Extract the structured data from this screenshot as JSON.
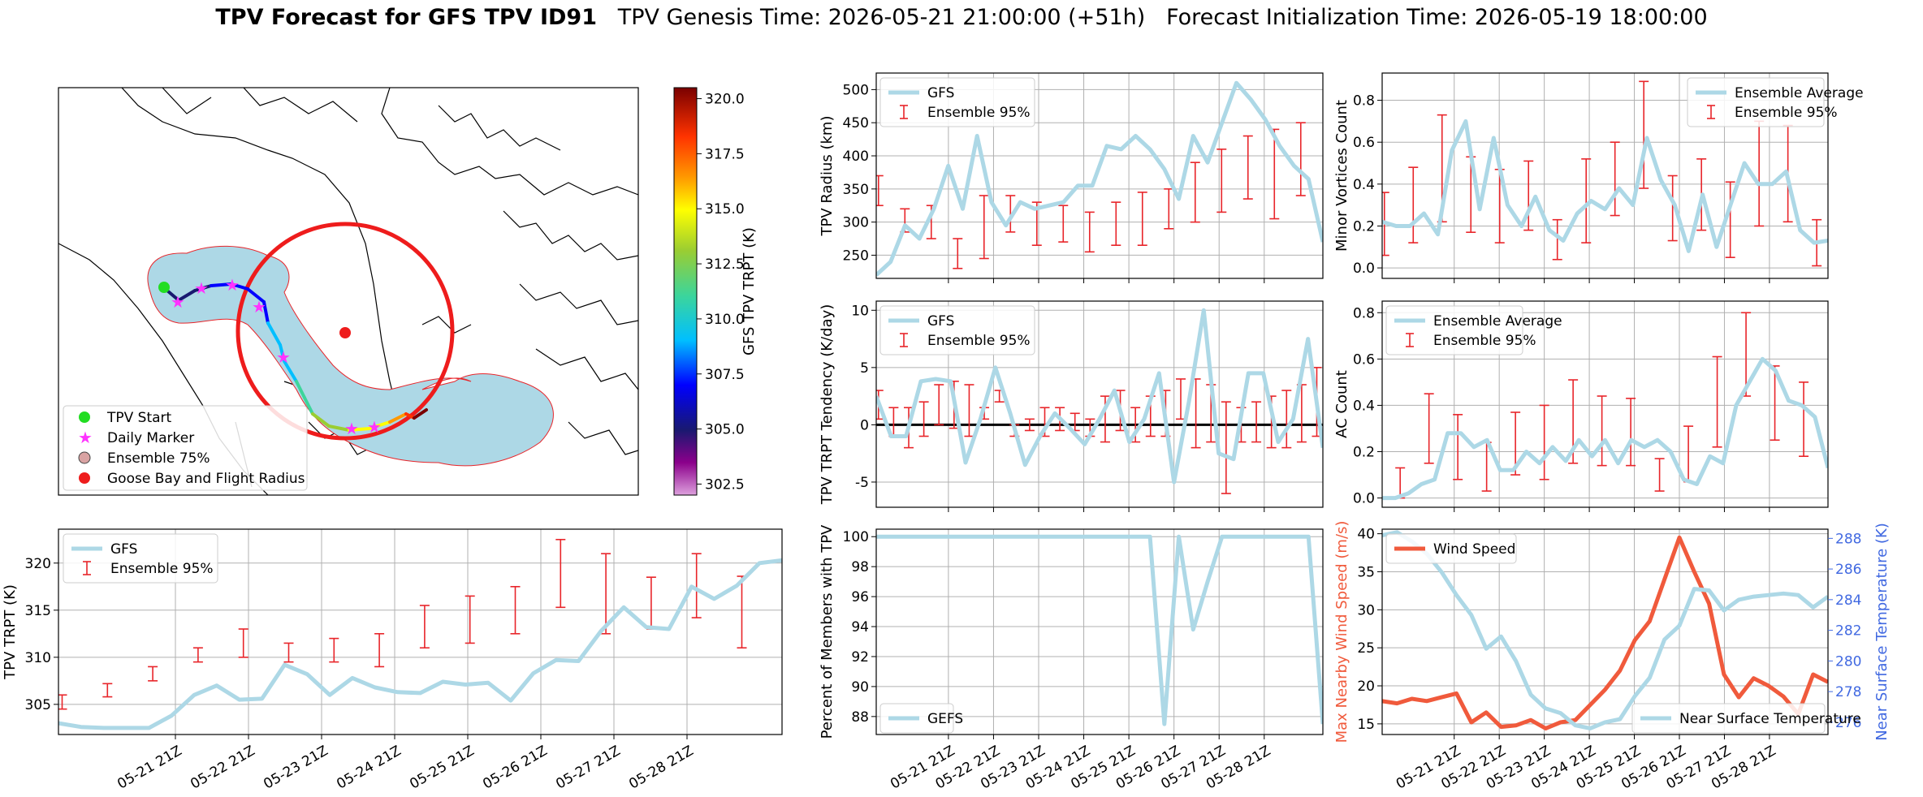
{
  "header": {
    "title_bold": "TPV Forecast for GFS TPV ID91",
    "genesis": "TPV Genesis Time: 2026-05-21 21:00:00 (+51h)",
    "init": "Forecast Initialization Time: 2026-05-19 18:00:00"
  },
  "colors": {
    "gfs_line": "#add8e6",
    "ensemble_bar": "#e8252a",
    "wind_line": "#f05a3c",
    "temp_axis": "#4169e1",
    "tendency_zero": "#000000"
  },
  "chart_data": [
    {
      "id": "map",
      "type": "map",
      "legend": [
        "TPV Start",
        "Daily Marker",
        "Ensemble 75%",
        "Goose Bay and Flight Radius"
      ],
      "colorbar": {
        "label": "GFS TPV TRPT (K)",
        "range": [
          302.0,
          320.5
        ],
        "ticks": [
          "302.5",
          "305.0",
          "307.5",
          "310.0",
          "312.5",
          "315.0",
          "317.5",
          "320.0"
        ]
      }
    },
    {
      "id": "radius",
      "type": "line",
      "ylabel": "TPV Radius (km)",
      "ylim": [
        215,
        525
      ],
      "yticks": [
        250,
        300,
        350,
        400,
        450,
        500
      ],
      "legend": [
        "GFS",
        "Ensemble 95%"
      ],
      "series": [
        {
          "name": "GFS",
          "values": [
            220,
            240,
            295,
            275,
            320,
            385,
            320,
            430,
            330,
            295,
            330,
            320,
            325,
            330,
            355,
            355,
            415,
            410,
            430,
            410,
            380,
            335,
            430,
            390,
            450,
            510,
            485,
            455,
            415,
            385,
            365,
            270
          ]
        }
      ],
      "ensemble": [
        [
          325,
          370
        ],
        [
          285,
          320
        ],
        [
          275,
          325
        ],
        [
          230,
          275
        ],
        [
          245,
          340
        ],
        [
          285,
          340
        ],
        [
          265,
          330
        ],
        [
          270,
          325
        ],
        [
          255,
          315
        ],
        [
          265,
          330
        ],
        [
          265,
          345
        ],
        [
          290,
          350
        ],
        [
          300,
          390
        ],
        [
          315,
          410
        ],
        [
          335,
          430
        ],
        [
          305,
          440
        ],
        [
          340,
          450
        ]
      ]
    },
    {
      "id": "tendency",
      "type": "line",
      "ylabel": "TPV TRPT Tendency (K/day)",
      "ylim": [
        -7.2,
        10.8
      ],
      "yticks": [
        -5,
        0,
        5,
        10
      ],
      "legend": [
        "GFS",
        "Ensemble 95%"
      ],
      "series": [
        {
          "name": "GFS",
          "values": [
            2.5,
            -1,
            -1,
            3.8,
            4,
            3.8,
            -3.3,
            0.5,
            5,
            1,
            -3.5,
            -1,
            1,
            -0.3,
            -1.7,
            0.5,
            3,
            -1.5,
            0.5,
            4.5,
            -5,
            2,
            10,
            -2.5,
            -3,
            4.5,
            4.5,
            -1.5,
            0.5,
            7.5,
            -2
          ]
        }
      ],
      "ensemble": [
        [
          0.5,
          3
        ],
        [
          -1,
          1.5
        ],
        [
          -2,
          1.5
        ],
        [
          -1,
          2
        ],
        [
          0,
          3.5
        ],
        [
          -0.3,
          3.8
        ],
        [
          -1,
          3.5
        ],
        [
          0.5,
          1.5
        ],
        [
          2,
          3
        ],
        [
          -1,
          0
        ],
        [
          -0.5,
          0.5
        ],
        [
          -1,
          1.5
        ],
        [
          -0.5,
          1.5
        ],
        [
          -0.5,
          1
        ],
        [
          -1,
          0.5
        ],
        [
          -1.5,
          2.5
        ],
        [
          -0.5,
          3
        ],
        [
          -1.5,
          1.5
        ],
        [
          -1,
          2.5
        ],
        [
          -1,
          3
        ],
        [
          0.5,
          4
        ],
        [
          -2,
          4
        ],
        [
          -1.5,
          3.5
        ],
        [
          -6,
          2
        ],
        [
          -1.5,
          1.5
        ],
        [
          -1.5,
          2
        ],
        [
          -2,
          2.5
        ],
        [
          -2,
          3
        ],
        [
          -1.5,
          3.5
        ],
        [
          -1,
          5
        ]
      ]
    },
    {
      "id": "members",
      "type": "line",
      "ylabel": "Percent of Members with TPV",
      "ylim": [
        86.8,
        100.5
      ],
      "yticks": [
        88,
        90,
        92,
        94,
        96,
        98,
        100
      ],
      "legend": [
        "GEFS"
      ],
      "xticks": [
        "05-21 21Z",
        "05-22 21Z",
        "05-23 21Z",
        "05-24 21Z",
        "05-25 21Z",
        "05-26 21Z",
        "05-27 21Z",
        "05-28 21Z"
      ],
      "series": [
        {
          "name": "GEFS",
          "values": [
            100,
            100,
            100,
            100,
            100,
            100,
            100,
            100,
            100,
            100,
            100,
            100,
            100,
            100,
            100,
            100,
            100,
            100,
            100,
            100,
            87.5,
            100,
            93.8,
            97,
            100,
            100,
            100,
            100,
            100,
            100,
            100,
            87.5
          ]
        }
      ]
    },
    {
      "id": "minor",
      "type": "line",
      "ylabel": "Minor Vortices Count",
      "ylim": [
        -0.05,
        0.93
      ],
      "yticks": [
        "0.0",
        "0.2",
        "0.4",
        "0.6",
        "0.8"
      ],
      "legend": [
        "Ensemble Average",
        "Ensemble 95%"
      ],
      "series": [
        {
          "name": "Ensemble Average",
          "values": [
            0.22,
            0.2,
            0.2,
            0.26,
            0.16,
            0.56,
            0.7,
            0.28,
            0.62,
            0.3,
            0.2,
            0.34,
            0.18,
            0.13,
            0.26,
            0.32,
            0.28,
            0.38,
            0.3,
            0.62,
            0.42,
            0.3,
            0.08,
            0.35,
            0.1,
            0.3,
            0.5,
            0.4,
            0.4,
            0.46,
            0.18,
            0.12,
            0.13
          ]
        }
      ],
      "ensemble": [
        [
          0.06,
          0.36
        ],
        [
          0.12,
          0.48
        ],
        [
          0.22,
          0.73
        ],
        [
          0.17,
          0.53
        ],
        [
          0.12,
          0.47
        ],
        [
          0.18,
          0.51
        ],
        [
          0.04,
          0.23
        ],
        [
          0.12,
          0.52
        ],
        [
          0.25,
          0.6
        ],
        [
          0.38,
          0.89
        ],
        [
          0.13,
          0.44
        ],
        [
          0.18,
          0.52
        ],
        [
          0.05,
          0.41
        ],
        [
          0.2,
          0.7
        ],
        [
          0.22,
          0.68
        ],
        [
          0.01,
          0.23
        ]
      ]
    },
    {
      "id": "ac",
      "type": "line",
      "ylabel": "AC Count",
      "ylim": [
        -0.04,
        0.85
      ],
      "yticks": [
        "0.0",
        "0.2",
        "0.4",
        "0.6",
        "0.8"
      ],
      "legend": [
        "Ensemble Average",
        "Ensemble 95%"
      ],
      "series": [
        {
          "name": "Ensemble Average",
          "values": [
            0,
            0,
            0.02,
            0.06,
            0.08,
            0.28,
            0.28,
            0.22,
            0.25,
            0.12,
            0.12,
            0.2,
            0.15,
            0.22,
            0.16,
            0.25,
            0.18,
            0.25,
            0.15,
            0.25,
            0.22,
            0.25,
            0.2,
            0.08,
            0.06,
            0.18,
            0.15,
            0.4,
            0.5,
            0.6,
            0.55,
            0.42,
            0.4,
            0.35,
            0.13
          ]
        }
      ],
      "ensemble": [
        [
          0,
          0.13
        ],
        [
          0.15,
          0.45
        ],
        [
          0.08,
          0.36
        ],
        [
          0.03,
          0.24
        ],
        [
          0.1,
          0.37
        ],
        [
          0.08,
          0.4
        ],
        [
          0.15,
          0.51
        ],
        [
          0.14,
          0.44
        ],
        [
          0.14,
          0.43
        ],
        [
          0.03,
          0.17
        ],
        [
          0.07,
          0.31
        ],
        [
          0.22,
          0.61
        ],
        [
          0.44,
          0.8
        ],
        [
          0.25,
          0.57
        ],
        [
          0.18,
          0.5
        ]
      ]
    },
    {
      "id": "trpt",
      "type": "line",
      "ylabel": "TPV TRPT (K)",
      "ylim": [
        301.8,
        323.6
      ],
      "yticks": [
        305,
        310,
        315,
        320
      ],
      "legend": [
        "GFS",
        "Ensemble 95%"
      ],
      "xticks": [
        "05-21 21Z",
        "05-22 21Z",
        "05-23 21Z",
        "05-24 21Z",
        "05-25 21Z",
        "05-26 21Z",
        "05-27 21Z",
        "05-28 21Z"
      ],
      "series": [
        {
          "name": "GFS",
          "values": [
            303,
            302.6,
            302.5,
            302.5,
            302.5,
            303.8,
            306,
            307,
            305.5,
            305.6,
            309.2,
            308.2,
            306,
            307.8,
            306.8,
            306.3,
            306.2,
            307.4,
            307.1,
            307.3,
            305.4,
            308.3,
            309.7,
            309.6,
            312.8,
            315.3,
            313.2,
            313,
            317.5,
            316.2,
            317.6,
            320,
            320.3
          ]
        }
      ],
      "ensemble": [
        [
          304.5,
          306
        ],
        [
          305.8,
          307.2
        ],
        [
          307.5,
          309
        ],
        [
          309.5,
          311
        ],
        [
          310,
          313
        ],
        [
          309.5,
          311.5
        ],
        [
          309.5,
          312
        ],
        [
          309,
          312.5
        ],
        [
          311,
          315.5
        ],
        [
          311.5,
          316.5
        ],
        [
          312.5,
          317.5
        ],
        [
          315.3,
          322.5
        ],
        [
          312.5,
          321
        ],
        [
          313,
          318.5
        ],
        [
          314.2,
          321
        ],
        [
          311,
          318.6
        ]
      ]
    },
    {
      "id": "wind_temp",
      "type": "line",
      "ylabel": "Max Nearby Wind Speed (m/s)",
      "ylabel2": "Near Surface Temperature (K)",
      "ylim": [
        13.6,
        40.6
      ],
      "ylim2": [
        275.2,
        288.6
      ],
      "yticks": [
        15,
        20,
        25,
        30,
        35,
        40
      ],
      "yticks2": [
        276,
        278,
        280,
        282,
        284,
        286,
        288
      ],
      "xticks": [
        "05-21 21Z",
        "05-22 21Z",
        "05-23 21Z",
        "05-24 21Z",
        "05-25 21Z",
        "05-26 21Z",
        "05-27 21Z",
        "05-28 21Z"
      ],
      "legend": [
        "Wind Speed",
        "Near Surface Temperature"
      ],
      "series": [
        {
          "name": "Wind Speed",
          "values": [
            18,
            17.7,
            18.3,
            18,
            18.5,
            19,
            15.2,
            16.5,
            14.6,
            14.8,
            15.5,
            14.4,
            15.2,
            15.5,
            17.5,
            19.5,
            22,
            26,
            28.5,
            34,
            39.5,
            35,
            30.8,
            21.5,
            18.5,
            21,
            20,
            18.6,
            16.3,
            21.5,
            20.5
          ]
        },
        {
          "name": "Near Surface Temperature",
          "values": [
            288.2,
            288.4,
            287.8,
            287,
            285.8,
            284.3,
            283,
            280.8,
            281.6,
            280,
            277.8,
            276.9,
            276.6,
            275.8,
            275.6,
            276,
            276.2,
            277.7,
            278.9,
            281.4,
            282.3,
            284.7,
            284.6,
            283.3,
            284,
            284.2,
            284.3,
            284.4,
            284.3,
            283.5,
            284.2
          ]
        }
      ]
    }
  ]
}
